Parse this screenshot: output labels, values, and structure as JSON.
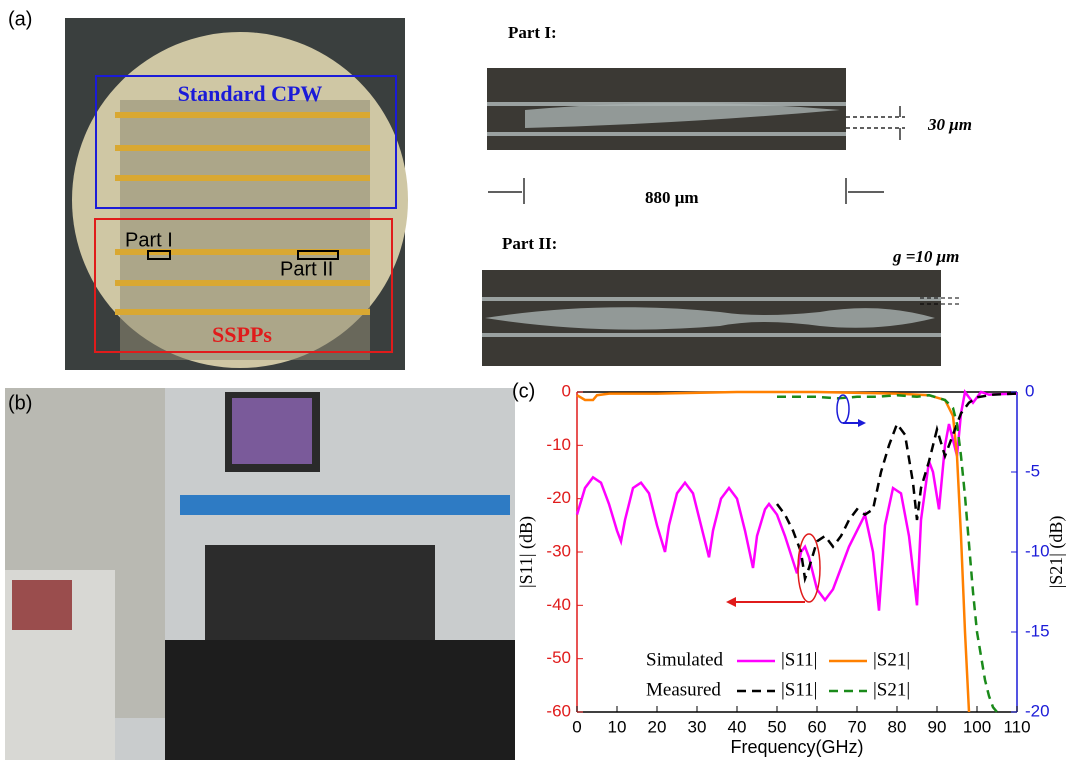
{
  "panels": {
    "a": {
      "label": "(a)",
      "cpw": "Standard CPW",
      "part1": "Part I",
      "part2": "Part II",
      "sspp": "SSPPs",
      "micro1_title": "Part I:",
      "gap_width": "30 μm",
      "length": "880 μm",
      "micro2_title": "Part II:",
      "g_label": "g =10 μm"
    },
    "b": {
      "label": "(b)"
    },
    "c": {
      "label": "(c)"
    }
  },
  "chart_data": {
    "type": "line",
    "xlabel": "Frequency(GHz)",
    "ylabel": "|S11| (dB)",
    "y2label": "|S21| (dB)",
    "xlim": [
      0,
      110
    ],
    "xticks": [
      0,
      10,
      20,
      30,
      40,
      50,
      60,
      70,
      80,
      90,
      100,
      110
    ],
    "ylim": [
      -60,
      0
    ],
    "yticks": [
      0,
      -10,
      -20,
      -30,
      -40,
      -50,
      -60
    ],
    "y2lim": [
      -20,
      0
    ],
    "y2ticks": [
      0,
      -5,
      -10,
      -15,
      -20
    ],
    "series": [
      {
        "name": "|S11|",
        "group": "Simulated",
        "color": "#ff00ff",
        "dash": false,
        "axis": "y",
        "x": [
          0,
          2,
          4,
          6,
          8,
          10,
          11,
          12,
          14,
          16,
          18,
          20,
          22,
          23,
          25,
          27,
          29,
          31,
          33,
          34,
          36,
          38,
          40,
          42,
          44,
          45,
          47,
          48,
          50,
          52,
          55,
          56,
          57,
          58,
          60,
          62,
          64,
          66,
          68,
          70,
          72,
          74,
          75.5,
          77,
          79,
          81,
          83,
          85,
          86,
          88,
          89,
          90.5,
          92,
          93,
          94,
          95,
          96,
          97,
          98,
          99,
          100,
          101,
          103,
          106,
          110
        ],
        "values": [
          -23,
          -18,
          -16,
          -17,
          -21,
          -26,
          -28,
          -24,
          -18,
          -17,
          -19,
          -25,
          -30,
          -25,
          -19,
          -17,
          -19,
          -25,
          -31,
          -26,
          -20,
          -18,
          -20,
          -26,
          -33,
          -27,
          -22,
          -21,
          -23,
          -27,
          -34,
          -30,
          -29,
          -31,
          -37,
          -39,
          -37,
          -33,
          -29,
          -26,
          -23,
          -30,
          -41,
          -25,
          -18,
          -19,
          -27,
          -40,
          -24,
          -13,
          -15,
          -22,
          -10,
          -6,
          -9,
          -12,
          -4,
          0,
          -1,
          -2,
          -1,
          0,
          -0.5,
          -0.4,
          -0.3
        ]
      },
      {
        "name": "|S21|",
        "group": "Simulated",
        "color": "#ff8000",
        "dash": false,
        "axis": "y2",
        "x": [
          0,
          2,
          4,
          5,
          8,
          20,
          40,
          60,
          80,
          88,
          92,
          94,
          95,
          96,
          97,
          98
        ],
        "values": [
          -0.2,
          -0.5,
          -0.5,
          -0.2,
          -0.1,
          -0.1,
          0,
          0,
          -0.1,
          -0.2,
          -0.5,
          -1.5,
          -4,
          -9,
          -15,
          -20
        ]
      },
      {
        "name": "|S11|",
        "group": "Measured",
        "color": "#000000",
        "dash": true,
        "axis": "y",
        "x": [
          50,
          52,
          54,
          56,
          57,
          58,
          60,
          62,
          64,
          66,
          68,
          70,
          72,
          74,
          76,
          78,
          80,
          82,
          84,
          85,
          86,
          88,
          90,
          92,
          94,
          96,
          98,
          100,
          104,
          110
        ],
        "values": [
          -21,
          -23,
          -26,
          -30,
          -35,
          -33,
          -28,
          -27,
          -29,
          -27,
          -24,
          -22,
          -23,
          -22,
          -15,
          -10,
          -6,
          -8,
          -17,
          -24,
          -18,
          -13,
          -7,
          -12,
          -8,
          -4,
          -2,
          -1,
          -0.5,
          -0.3
        ]
      },
      {
        "name": "|S21|",
        "group": "Measured",
        "color": "#1a8a1a",
        "dash": true,
        "axis": "y2",
        "x": [
          50,
          60,
          65,
          70,
          75,
          80,
          85,
          88,
          92,
          94,
          95,
          96,
          97,
          98,
          99,
          100,
          101,
          102,
          103,
          104,
          105
        ],
        "values": [
          -0.3,
          -0.3,
          -0.4,
          -0.3,
          -0.3,
          -0.2,
          -0.3,
          -0.2,
          -0.5,
          -1,
          -2,
          -4,
          -6.5,
          -9.5,
          -12.5,
          -15,
          -16.5,
          -18,
          -19,
          -19.7,
          -20
        ]
      }
    ]
  }
}
